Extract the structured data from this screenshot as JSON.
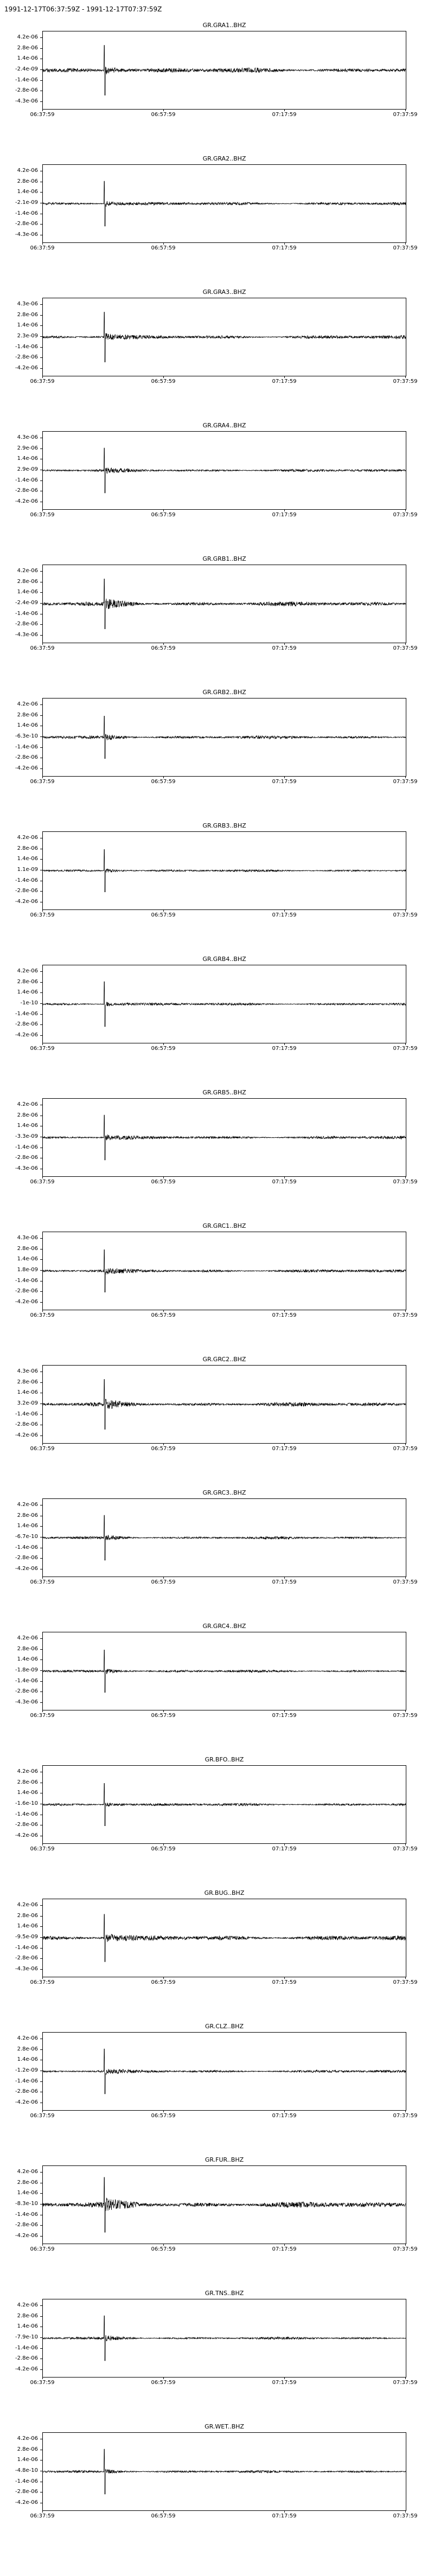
{
  "header": {
    "time_range": "1991-12-17T06:37:59Z  -  1991-12-17T07:37:59Z"
  },
  "colors": {
    "trace": "#000000",
    "frame": "#000000",
    "background": "#ffffff"
  },
  "chart_data": {
    "type": "line",
    "x_ticks": [
      "06:37:59",
      "06:57:59",
      "07:17:59",
      "07:37:59"
    ],
    "xlim": [
      "06:37:59",
      "07:37:59"
    ],
    "grid": false,
    "panels": [
      {
        "title": "GR.GRA1..BHZ",
        "yticks": [
          "4.2e-06",
          "2.8e-06",
          "1.4e-06",
          "-2.4e-09",
          "-1.4e-06",
          "-2.8e-06",
          "-4.3e-06"
        ],
        "amp": 0.55,
        "spike": 1.0,
        "seed": 1
      },
      {
        "title": "GR.GRA2..BHZ",
        "yticks": [
          "4.2e-06",
          "2.8e-06",
          "1.4e-06",
          "-2.1e-09",
          "-1.4e-06",
          "-2.8e-06",
          "-4.3e-06"
        ],
        "amp": 0.35,
        "spike": 0.9,
        "seed": 2
      },
      {
        "title": "GR.GRA3..BHZ",
        "yticks": [
          "4.3e-06",
          "2.8e-06",
          "1.4e-06",
          "2.3e-09",
          "-1.4e-06",
          "-2.8e-06",
          "-4.2e-06"
        ],
        "amp": 0.4,
        "spike": 1.0,
        "seed": 3
      },
      {
        "title": "GR.GRA4..BHZ",
        "yticks": [
          "4.3e-06",
          "2.9e-06",
          "1.4e-06",
          "2.9e-09",
          "-1.4e-06",
          "-2.8e-06",
          "-4.2e-06"
        ],
        "amp": 0.3,
        "spike": 0.9,
        "seed": 4
      },
      {
        "title": "GR.GRB1..BHZ",
        "yticks": [
          "4.2e-06",
          "2.8e-06",
          "1.4e-06",
          "-2.4e-09",
          "-1.4e-06",
          "-2.8e-06",
          "-4.3e-06"
        ],
        "amp": 0.5,
        "spike": 1.0,
        "seed": 5
      },
      {
        "title": "GR.GRB2..BHZ",
        "yticks": [
          "4.2e-06",
          "2.8e-06",
          "1.4e-06",
          "-6.3e-10",
          "-1.4e-06",
          "-2.8e-06",
          "-4.2e-06"
        ],
        "amp": 0.35,
        "spike": 0.85,
        "seed": 6
      },
      {
        "title": "GR.GRB3..BHZ",
        "yticks": [
          "4.2e-06",
          "2.8e-06",
          "1.4e-06",
          "1.1e-09",
          "-1.4e-06",
          "-2.8e-06",
          "-4.2e-06"
        ],
        "amp": 0.25,
        "spike": 0.85,
        "seed": 7
      },
      {
        "title": "GR.GRB4..BHZ",
        "yticks": [
          "4.2e-06",
          "2.8e-06",
          "1.4e-06",
          "-1e-10",
          "-1.4e-06",
          "-2.8e-06",
          "-4.2e-06"
        ],
        "amp": 0.3,
        "spike": 0.9,
        "seed": 8
      },
      {
        "title": "GR.GRB5..BHZ",
        "yticks": [
          "4.2e-06",
          "2.8e-06",
          "1.4e-06",
          "-3.3e-09",
          "-1.4e-06",
          "-2.8e-06",
          "-4.3e-06"
        ],
        "amp": 0.35,
        "spike": 0.9,
        "seed": 9
      },
      {
        "title": "GR.GRC1..BHZ",
        "yticks": [
          "4.3e-06",
          "2.8e-06",
          "1.4e-06",
          "1.8e-09",
          "-1.4e-06",
          "-2.8e-06",
          "-4.2e-06"
        ],
        "amp": 0.35,
        "spike": 0.85,
        "seed": 10
      },
      {
        "title": "GR.GRC2..BHZ",
        "yticks": [
          "4.3e-06",
          "2.8e-06",
          "1.4e-06",
          "3.2e-09",
          "-1.4e-06",
          "-2.8e-06",
          "-4.2e-06"
        ],
        "amp": 0.45,
        "spike": 1.0,
        "seed": 11
      },
      {
        "title": "GR.GRC3..BHZ",
        "yticks": [
          "4.2e-06",
          "2.8e-06",
          "1.4e-06",
          "-6.7e-10",
          "-1.4e-06",
          "-2.8e-06",
          "-4.2e-06"
        ],
        "amp": 0.3,
        "spike": 0.9,
        "seed": 12
      },
      {
        "title": "GR.GRC4..BHZ",
        "yticks": [
          "4.2e-06",
          "2.8e-06",
          "1.4e-06",
          "-1.8e-09",
          "-1.4e-06",
          "-2.8e-06",
          "-4.3e-06"
        ],
        "amp": 0.3,
        "spike": 0.85,
        "seed": 13
      },
      {
        "title": "GR.BFO..BHZ",
        "yticks": [
          "4.2e-06",
          "2.8e-06",
          "1.4e-06",
          "-1.6e-10",
          "-1.4e-06",
          "-2.8e-06",
          "-4.2e-06"
        ],
        "amp": 0.3,
        "spike": 0.85,
        "seed": 14
      },
      {
        "title": "GR.BUG..BHZ",
        "yticks": [
          "4.2e-06",
          "2.8e-06",
          "1.4e-06",
          "-9.5e-09",
          "-1.4e-06",
          "-2.8e-06",
          "-4.3e-06"
        ],
        "amp": 0.55,
        "spike": 0.95,
        "seed": 15
      },
      {
        "title": "GR.CLZ..BHZ",
        "yticks": [
          "4.2e-06",
          "2.8e-06",
          "1.4e-06",
          "-1.2e-09",
          "-1.4e-06",
          "-2.8e-06",
          "-4.2e-06"
        ],
        "amp": 0.3,
        "spike": 0.9,
        "seed": 16
      },
      {
        "title": "GR.FUR..BHZ",
        "yticks": [
          "4.2e-06",
          "2.8e-06",
          "1.4e-06",
          "-8.3e-10",
          "-1.4e-06",
          "-2.8e-06",
          "-4.2e-06"
        ],
        "amp": 0.65,
        "spike": 1.1,
        "seed": 17
      },
      {
        "title": "GR.TNS..BHZ",
        "yticks": [
          "4.2e-06",
          "2.8e-06",
          "1.4e-06",
          "-7.9e-10",
          "-1.4e-06",
          "-2.8e-06",
          "-4.2e-06"
        ],
        "amp": 0.28,
        "spike": 0.9,
        "seed": 18
      },
      {
        "title": "GR.WET..BHZ",
        "yticks": [
          "4.2e-06",
          "2.8e-06",
          "1.4e-06",
          "-4.8e-10",
          "-1.4e-06",
          "-2.8e-06",
          "-4.2e-06"
        ],
        "amp": 0.28,
        "spike": 0.9,
        "seed": 19
      }
    ]
  }
}
